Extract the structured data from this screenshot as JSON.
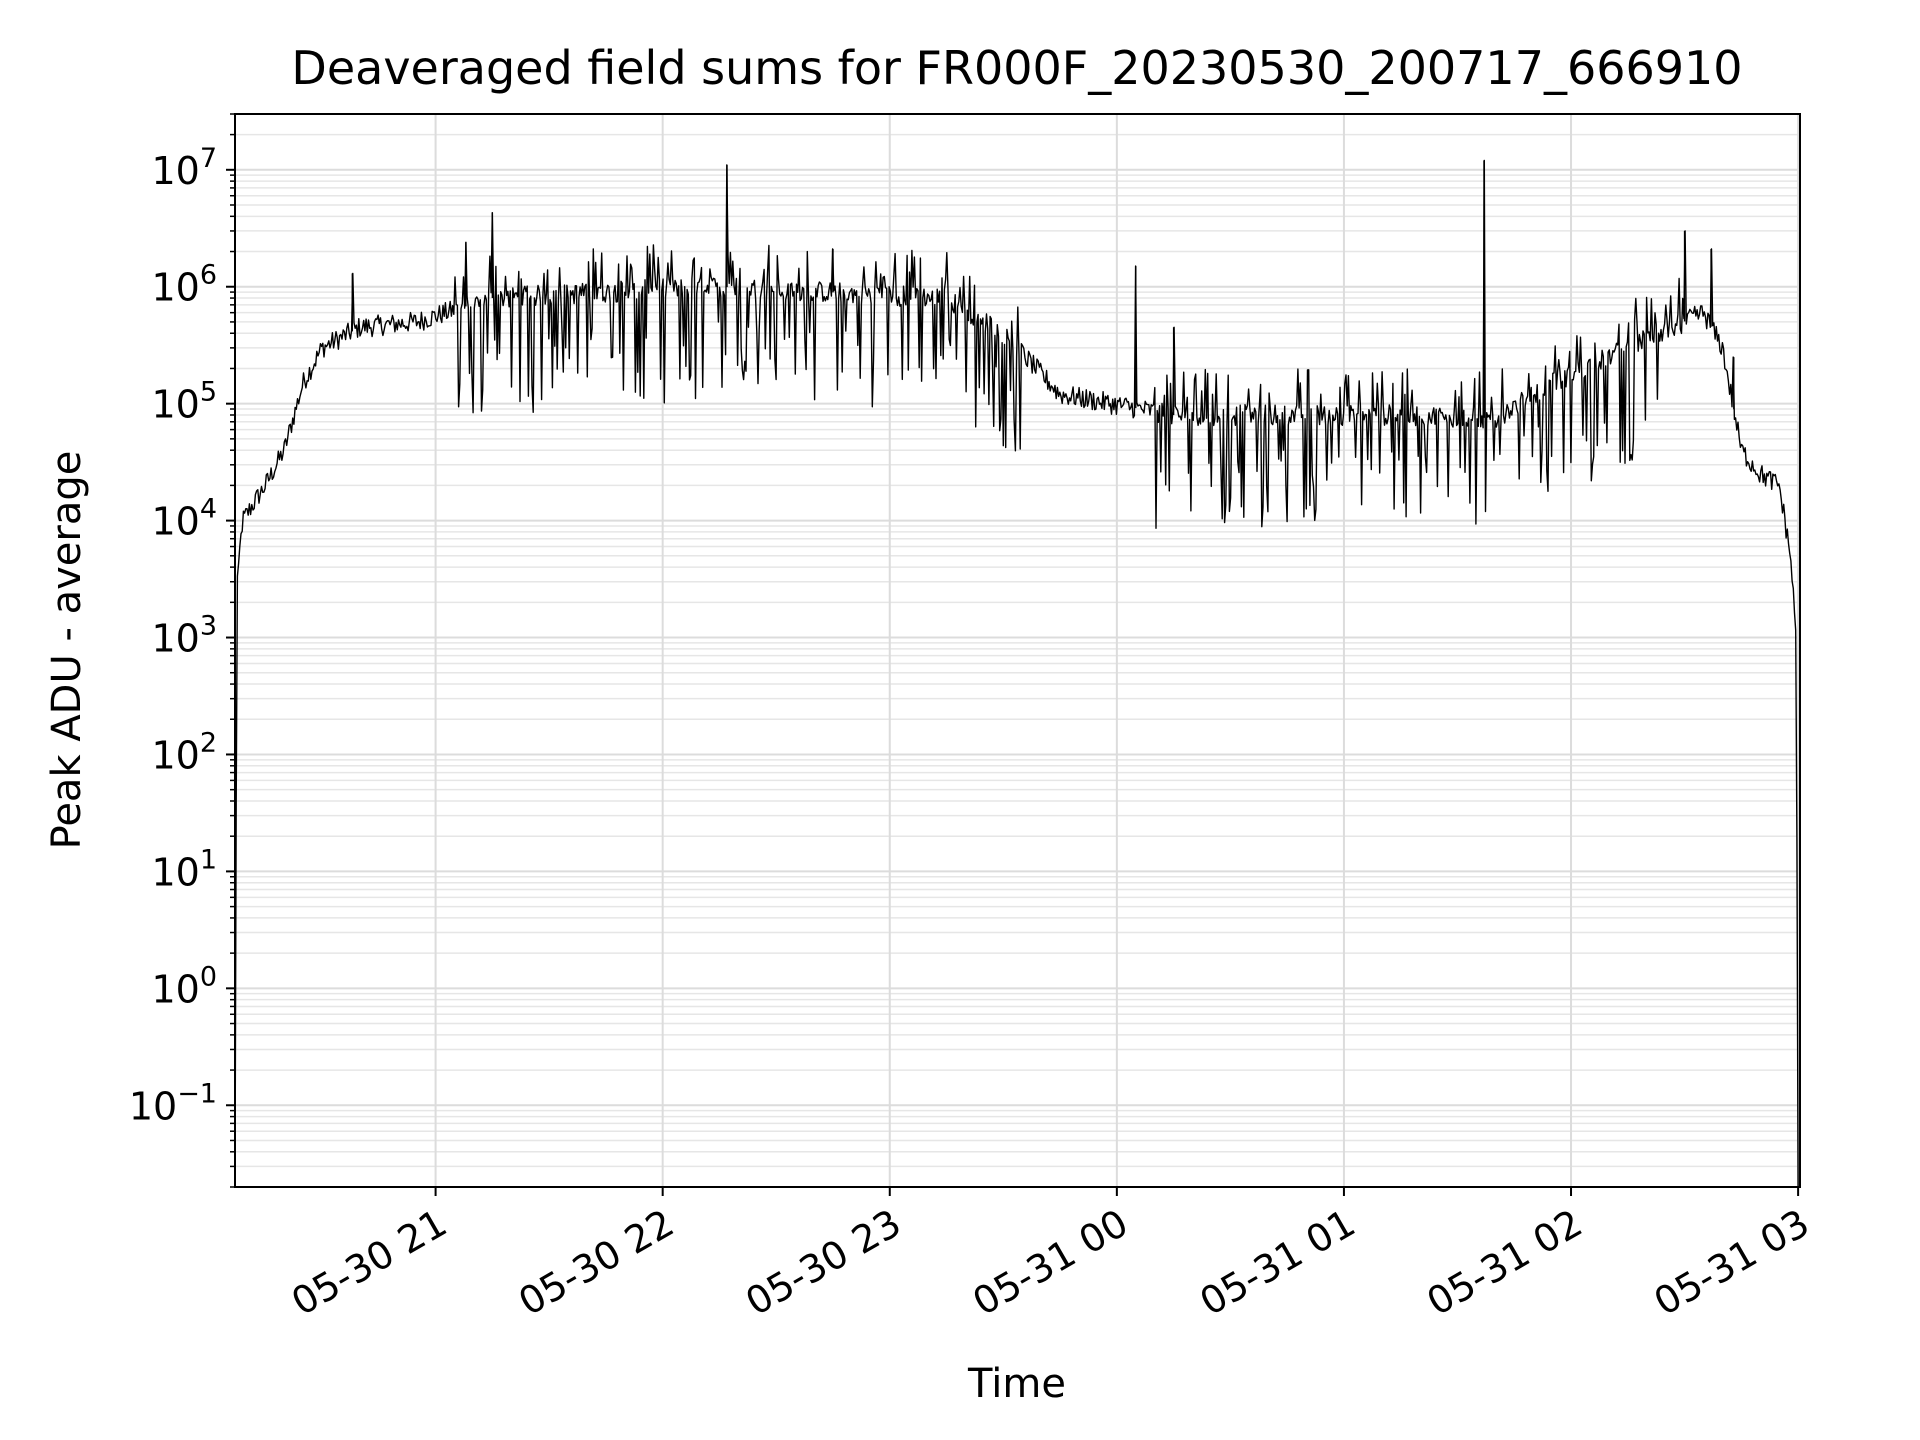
{
  "chart_data": {
    "type": "line",
    "title": "Deaveraged field sums for FR000F_20230530_200717_666910",
    "xlabel": "Time",
    "ylabel": "Peak ADU - average",
    "yscale": "log",
    "ylim": [
      0.02,
      30000000
    ],
    "xlim": [
      "2023-05-30 20:07:00",
      "2023-05-31 03:00:30"
    ],
    "grid": true,
    "line_color": "#000000",
    "x_ticks": [
      {
        "label": "05-30 21",
        "value": "2023-05-30 21:00"
      },
      {
        "label": "05-30 22",
        "value": "2023-05-30 22:00"
      },
      {
        "label": "05-30 23",
        "value": "2023-05-30 23:00"
      },
      {
        "label": "05-31 00",
        "value": "2023-05-31 00:00"
      },
      {
        "label": "05-31 01",
        "value": "2023-05-31 01:00"
      },
      {
        "label": "05-31 02",
        "value": "2023-05-31 02:00"
      },
      {
        "label": "05-31 03",
        "value": "2023-05-31 03:00"
      }
    ],
    "y_ticks": [
      {
        "base": "10",
        "exp": "−1",
        "value": 0.1
      },
      {
        "base": "10",
        "exp": "0",
        "value": 1
      },
      {
        "base": "10",
        "exp": "1",
        "value": 10
      },
      {
        "base": "10",
        "exp": "2",
        "value": 100
      },
      {
        "base": "10",
        "exp": "3",
        "value": 1000
      },
      {
        "base": "10",
        "exp": "4",
        "value": 10000
      },
      {
        "base": "10",
        "exp": "5",
        "value": 100000
      },
      {
        "base": "10",
        "exp": "6",
        "value": 1000000
      },
      {
        "base": "10",
        "exp": "7",
        "value": 10000000
      }
    ],
    "series": [
      {
        "baseline": [
          [
            "2023-05-30 20:07",
            0.02
          ],
          [
            "2023-05-30 20:07:30",
            3000
          ],
          [
            "2023-05-30 20:09",
            10000
          ],
          [
            "2023-05-30 20:15",
            20000
          ],
          [
            "2023-05-30 20:20",
            40000
          ],
          [
            "2023-05-30 20:25",
            150000
          ],
          [
            "2023-05-30 20:30",
            300000
          ],
          [
            "2023-05-30 20:40",
            450000
          ],
          [
            "2023-05-30 20:55",
            500000
          ],
          [
            "2023-05-30 21:15",
            800000
          ],
          [
            "2023-05-30 21:45",
            900000
          ],
          [
            "2023-05-30 22:15",
            1000000
          ],
          [
            "2023-05-30 23:15",
            800000
          ],
          [
            "2023-05-30 23:30",
            400000
          ],
          [
            "2023-05-30 23:45",
            120000
          ],
          [
            "2023-05-31 00:15",
            80000
          ],
          [
            "2023-05-31 01:15",
            80000
          ],
          [
            "2023-05-31 01:40",
            75000
          ],
          [
            "2023-05-31 01:55",
            150000
          ],
          [
            "2023-05-31 02:15",
            300000
          ],
          [
            "2023-05-31 02:35",
            600000
          ],
          [
            "2023-05-31 02:40",
            300000
          ],
          [
            "2023-05-31 02:45",
            40000
          ],
          [
            "2023-05-31 02:50",
            25000
          ],
          [
            "2023-05-31 02:55",
            20000
          ],
          [
            "2023-05-31 02:58",
            5000
          ],
          [
            "2023-05-31 02:59:30",
            1000
          ],
          [
            "2023-05-31 03:00",
            0.02
          ]
        ],
        "spikes": [
          [
            "2023-05-30 20:38",
            1300000
          ],
          [
            "2023-05-30 21:08",
            2400000
          ],
          [
            "2023-05-30 21:15",
            4300000
          ],
          [
            "2023-05-30 22:17",
            11000000
          ],
          [
            "2023-05-30 22:45",
            2100000
          ],
          [
            "2023-05-31 00:05",
            1500000
          ],
          [
            "2023-05-31 00:15",
            450000
          ],
          [
            "2023-05-31 01:37",
            12000000
          ],
          [
            "2023-05-31 02:30",
            3000000
          ],
          [
            "2023-05-31 02:37",
            2100000
          ],
          [
            "2023-05-31 02:43",
            250000
          ]
        ]
      }
    ]
  }
}
